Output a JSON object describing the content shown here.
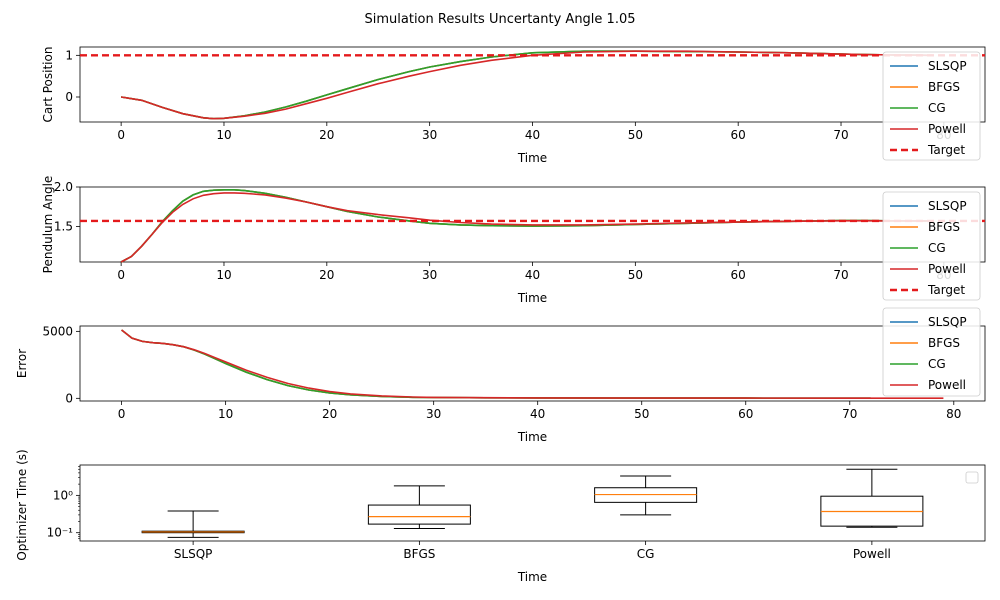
{
  "figure": {
    "title": "Simulation Results Uncertanty Angle 1.05"
  },
  "colors": {
    "SLSQP": "#1f77b4",
    "BFGS": "#ff7f0e",
    "CG": "#2ca02c",
    "Powell": "#d62728",
    "Target": "#e41a1c",
    "median": "#ff7f0e"
  },
  "chart_data": [
    {
      "id": "cart",
      "type": "line",
      "xlabel": "Time",
      "ylabel": "Cart Position",
      "xlim": [
        -4,
        84
      ],
      "ylim": [
        -0.6,
        1.2
      ],
      "xticks": [
        0,
        10,
        20,
        30,
        40,
        50,
        60,
        70,
        80
      ],
      "yticks": [
        0,
        1
      ],
      "target": 1.0,
      "legend": [
        "SLSQP",
        "BFGS",
        "CG",
        "Powell",
        "Target"
      ],
      "legend_position": "right",
      "x": [
        0,
        2,
        4,
        6,
        8,
        9,
        10,
        12,
        14,
        16,
        18,
        20,
        22,
        25,
        28,
        30,
        33,
        36,
        40,
        45,
        50,
        55,
        60,
        65,
        70,
        72,
        75,
        79
      ],
      "series": [
        {
          "name": "SLSQP",
          "values": [
            0,
            -0.08,
            -0.25,
            -0.4,
            -0.5,
            -0.52,
            -0.51,
            -0.45,
            -0.36,
            -0.24,
            -0.1,
            0.05,
            0.2,
            0.42,
            0.61,
            0.72,
            0.85,
            0.96,
            1.06,
            1.1,
            1.1,
            1.09,
            1.08,
            1.06,
            1.03,
            1.02,
            1.01,
            1.0
          ]
        },
        {
          "name": "BFGS",
          "values": [
            0,
            -0.08,
            -0.25,
            -0.4,
            -0.5,
            -0.52,
            -0.51,
            -0.45,
            -0.36,
            -0.24,
            -0.1,
            0.05,
            0.2,
            0.42,
            0.61,
            0.72,
            0.85,
            0.96,
            1.06,
            1.1,
            1.1,
            1.09,
            1.08,
            1.06,
            1.03,
            1.02,
            1.01,
            1.0
          ]
        },
        {
          "name": "CG",
          "values": [
            0,
            -0.08,
            -0.25,
            -0.4,
            -0.5,
            -0.52,
            -0.51,
            -0.45,
            -0.36,
            -0.24,
            -0.1,
            0.05,
            0.2,
            0.42,
            0.61,
            0.72,
            0.85,
            0.96,
            1.06,
            1.1,
            1.1,
            1.09,
            1.08,
            1.06,
            1.03,
            1.02,
            1.01,
            1.0
          ]
        },
        {
          "name": "Powell",
          "values": [
            0,
            -0.08,
            -0.25,
            -0.4,
            -0.5,
            -0.52,
            -0.51,
            -0.46,
            -0.39,
            -0.29,
            -0.16,
            -0.03,
            0.11,
            0.32,
            0.5,
            0.61,
            0.76,
            0.88,
            1.0,
            1.08,
            1.1,
            1.1,
            1.08,
            1.06,
            1.03,
            1.02,
            1.01,
            1.0
          ]
        }
      ]
    },
    {
      "id": "angle",
      "type": "line",
      "xlabel": "Time",
      "ylabel": "Pendulum Angle",
      "xlim": [
        -4,
        84
      ],
      "ylim": [
        1.05,
        2.0
      ],
      "xticks": [
        0,
        10,
        20,
        30,
        40,
        50,
        60,
        70,
        80
      ],
      "yticks": [
        1.5,
        2.0
      ],
      "ytick_labels": [
        "1.5",
        "2.0"
      ],
      "target": 1.57,
      "legend": [
        "SLSQP",
        "BFGS",
        "CG",
        "Powell",
        "Target"
      ],
      "legend_position": "right",
      "x": [
        0,
        1,
        2,
        3,
        4,
        5,
        6,
        7,
        8,
        9,
        10,
        11,
        12,
        14,
        16,
        18,
        20,
        22,
        25,
        28,
        30,
        33,
        36,
        40,
        45,
        50,
        55,
        60,
        65,
        70,
        72,
        75,
        79
      ],
      "series": [
        {
          "name": "SLSQP",
          "values": [
            1.05,
            1.12,
            1.25,
            1.4,
            1.56,
            1.7,
            1.82,
            1.9,
            1.945,
            1.96,
            1.965,
            1.965,
            1.955,
            1.92,
            1.87,
            1.81,
            1.75,
            1.69,
            1.62,
            1.57,
            1.54,
            1.52,
            1.51,
            1.505,
            1.51,
            1.525,
            1.54,
            1.555,
            1.565,
            1.575,
            1.575,
            1.572,
            1.57
          ]
        },
        {
          "name": "BFGS",
          "values": [
            1.05,
            1.12,
            1.25,
            1.4,
            1.56,
            1.7,
            1.82,
            1.9,
            1.945,
            1.96,
            1.965,
            1.965,
            1.955,
            1.92,
            1.87,
            1.81,
            1.75,
            1.69,
            1.62,
            1.57,
            1.54,
            1.52,
            1.51,
            1.505,
            1.51,
            1.525,
            1.54,
            1.555,
            1.565,
            1.575,
            1.575,
            1.572,
            1.57
          ]
        },
        {
          "name": "CG",
          "values": [
            1.05,
            1.12,
            1.25,
            1.4,
            1.56,
            1.7,
            1.82,
            1.9,
            1.945,
            1.96,
            1.965,
            1.965,
            1.955,
            1.92,
            1.87,
            1.81,
            1.75,
            1.69,
            1.62,
            1.57,
            1.54,
            1.52,
            1.51,
            1.505,
            1.51,
            1.525,
            1.54,
            1.555,
            1.565,
            1.575,
            1.575,
            1.572,
            1.57
          ]
        },
        {
          "name": "Powell",
          "values": [
            1.05,
            1.12,
            1.25,
            1.4,
            1.55,
            1.68,
            1.78,
            1.85,
            1.895,
            1.915,
            1.925,
            1.925,
            1.92,
            1.9,
            1.86,
            1.81,
            1.75,
            1.7,
            1.65,
            1.61,
            1.58,
            1.55,
            1.53,
            1.52,
            1.52,
            1.53,
            1.545,
            1.555,
            1.565,
            1.572,
            1.572,
            1.571,
            1.57
          ]
        }
      ]
    },
    {
      "id": "error",
      "type": "line",
      "xlabel": "Time",
      "ylabel": "Error",
      "xlim": [
        -4,
        83
      ],
      "ylim": [
        -200,
        5400
      ],
      "xticks": [
        0,
        10,
        20,
        30,
        40,
        50,
        60,
        70,
        80
      ],
      "yticks": [
        0,
        5000
      ],
      "legend": [
        "SLSQP",
        "BFGS",
        "CG",
        "Powell"
      ],
      "legend_position": "right",
      "x": [
        0,
        1,
        2,
        3,
        4,
        5,
        6,
        7,
        8,
        9,
        10,
        12,
        14,
        16,
        18,
        20,
        22,
        25,
        28,
        30,
        35,
        40,
        50,
        60,
        70,
        72,
        79
      ],
      "series": [
        {
          "name": "SLSQP",
          "values": [
            5100,
            4500,
            4250,
            4150,
            4100,
            4000,
            3850,
            3600,
            3300,
            2950,
            2600,
            1950,
            1400,
            950,
            620,
            400,
            260,
            140,
            80,
            60,
            40,
            30,
            20,
            15,
            10,
            10,
            null
          ]
        },
        {
          "name": "BFGS",
          "values": [
            5100,
            4500,
            4250,
            4150,
            4100,
            4000,
            3850,
            3600,
            3300,
            2950,
            2600,
            1950,
            1400,
            950,
            620,
            400,
            260,
            140,
            80,
            60,
            40,
            30,
            20,
            15,
            10,
            10,
            null
          ]
        },
        {
          "name": "CG",
          "values": [
            5100,
            4500,
            4250,
            4150,
            4100,
            4000,
            3850,
            3600,
            3300,
            2950,
            2600,
            1950,
            1400,
            950,
            620,
            400,
            260,
            140,
            80,
            60,
            40,
            30,
            20,
            15,
            10,
            10,
            null
          ]
        },
        {
          "name": "Powell",
          "values": [
            5100,
            4500,
            4250,
            4150,
            4100,
            4000,
            3850,
            3620,
            3350,
            3030,
            2720,
            2100,
            1560,
            1110,
            760,
            500,
            330,
            180,
            100,
            70,
            45,
            30,
            20,
            15,
            10,
            10,
            8
          ]
        }
      ]
    },
    {
      "id": "time",
      "type": "box",
      "xlabel": "Time",
      "ylabel": "Optimizer Time (s)",
      "yscale": "log",
      "ylim": [
        0.06,
        6.5
      ],
      "yticks": [
        0.1,
        1
      ],
      "ytick_labels": [
        "10⁻¹",
        "10⁰"
      ],
      "categories": [
        "SLSQP",
        "BFGS",
        "CG",
        "Powell"
      ],
      "boxes": [
        {
          "name": "SLSQP",
          "whislo": 0.075,
          "q1": 0.1,
          "med": 0.105,
          "q3": 0.11,
          "whishi": 0.38
        },
        {
          "name": "BFGS",
          "whislo": 0.13,
          "q1": 0.17,
          "med": 0.27,
          "q3": 0.55,
          "whishi": 1.8
        },
        {
          "name": "CG",
          "whislo": 0.3,
          "q1": 0.65,
          "med": 1.05,
          "q3": 1.6,
          "whishi": 3.3
        },
        {
          "name": "Powell",
          "whislo": 0.14,
          "q1": 0.15,
          "med": 0.37,
          "q3": 0.95,
          "whishi": 5.0
        }
      ],
      "legend": []
    }
  ]
}
